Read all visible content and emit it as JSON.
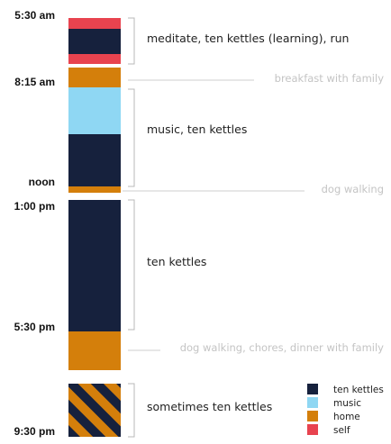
{
  "colors": {
    "ten_kettles": "#16213d",
    "music": "#8fd7f3",
    "home": "#d47f0b",
    "self": "#e8434f",
    "bracket": "#b8b8b8",
    "guide": "#cfcfcf",
    "aside_text": "#c4c4c4"
  },
  "time_labels": [
    "5:30 am",
    "8:15 am",
    "noon",
    "1:00 pm",
    "5:30 pm",
    "9:30 pm"
  ],
  "activities": {
    "meditate": "meditate, ten kettles (learning), run",
    "music": "music, ten kettles",
    "ten_kettles": "ten kettles",
    "sometimes": "sometimes ten kettles"
  },
  "asides": {
    "breakfast": "breakfast with family",
    "dog_walking": "dog walking",
    "evening": "dog walking, chores, dinner with family"
  },
  "legend": [
    {
      "label": "ten kettles",
      "color": "#16213d"
    },
    {
      "label": "music",
      "color": "#8fd7f3"
    },
    {
      "label": "home",
      "color": "#d47f0b"
    },
    {
      "label": "self",
      "color": "#e8434f"
    }
  ]
}
